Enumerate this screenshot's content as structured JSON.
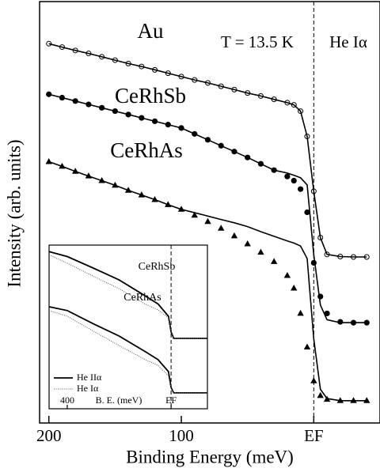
{
  "chart_data": [
    {
      "type": "line",
      "x_label": "Binding Energy (meV)",
      "y_label": "Intensity (arb. units)",
      "annotations": [
        "T = 13.5 K",
        "He Iα"
      ],
      "xlim": [
        207,
        -50
      ],
      "ylim": [
        0,
        100
      ],
      "xticks": [
        200,
        100,
        {
          "value": 0,
          "label": "EF"
        }
      ],
      "fermi_level": 0,
      "x": [
        200,
        190,
        180,
        170,
        160,
        150,
        140,
        130,
        120,
        110,
        100,
        90,
        80,
        70,
        60,
        50,
        40,
        30,
        20,
        15,
        10,
        5,
        0,
        -5,
        -10,
        -20,
        -30,
        -40
      ],
      "series": [
        {
          "name": "Au",
          "marker": "open-circle",
          "color": "#000",
          "values": [
            90,
            89.2,
            88.4,
            87.7,
            86.9,
            86.1,
            85.3,
            84.6,
            83.8,
            83.0,
            82.2,
            81.4,
            80.7,
            79.9,
            79.1,
            78.3,
            77.6,
            76.8,
            76.0,
            75.5,
            74.0,
            68,
            55,
            44,
            40,
            39.5,
            39.4,
            39.4
          ],
          "fit": [
            90,
            89.2,
            88.4,
            87.7,
            86.9,
            86.1,
            85.3,
            84.6,
            83.8,
            83.0,
            82.2,
            81.4,
            80.7,
            79.9,
            79.1,
            78.3,
            77.6,
            76.8,
            76.0,
            75.5,
            74.0,
            68,
            55,
            44,
            40,
            39.5,
            39.4,
            39.4
          ]
        },
        {
          "name": "CeRhSb",
          "marker": "circle",
          "color": "#000",
          "values": [
            78,
            77.2,
            76.4,
            75.6,
            74.8,
            74,
            73.2,
            72.4,
            71.6,
            70.8,
            70,
            68.6,
            67.2,
            65.8,
            64.4,
            63,
            61.5,
            60,
            58.5,
            57.5,
            55.5,
            50,
            38,
            30,
            26,
            24,
            23.8,
            23.8
          ],
          "fit": [
            78,
            77.2,
            76.4,
            75.6,
            74.8,
            74,
            73.2,
            72.4,
            71.6,
            70.8,
            70,
            68.6,
            67.2,
            65.8,
            64.4,
            63,
            61.5,
            60,
            59.3,
            58.8,
            58.2,
            56.5,
            40,
            28,
            24.5,
            23.8,
            23.8,
            23.8
          ]
        },
        {
          "name": "CeRhAs",
          "marker": "triangle",
          "color": "#000",
          "values": [
            62,
            60.9,
            59.7,
            58.6,
            57.5,
            56.4,
            55.2,
            54.1,
            53,
            51.8,
            50.7,
            49.3,
            47.8,
            46.2,
            44.4,
            42.5,
            40.5,
            38.3,
            35,
            32,
            26,
            18,
            10,
            6.5,
            5.6,
            5.3,
            5.3,
            5.3
          ],
          "fit": [
            62,
            60.9,
            59.7,
            58.6,
            57.5,
            56.4,
            55.2,
            54.1,
            53,
            51.8,
            50.7,
            49.9,
            49.1,
            48.3,
            47.5,
            46.6,
            45.4,
            44.3,
            43.2,
            42.7,
            42,
            39,
            20,
            8,
            5.8,
            5.3,
            5.3,
            5.3
          ]
        }
      ]
    },
    {
      "type": "line",
      "x_label": "B. E. (meV)",
      "xlim": [
        470,
        -140
      ],
      "ylim": [
        0,
        100
      ],
      "xticks": [
        400,
        {
          "value": 0,
          "label": "EF"
        }
      ],
      "fermi_level": 0,
      "labels": [
        "CeRhSb",
        "CeRhAs"
      ],
      "x": [
        470,
        400,
        300,
        200,
        100,
        50,
        10,
        0,
        -10,
        -140
      ],
      "series": [
        {
          "name": "He IIα",
          "style": "solid",
          "color": "#000",
          "curves": [
            [
              96,
              93,
              86,
              78.7,
              69,
              64,
              56.5,
              47,
              43,
              43
            ],
            [
              62.3,
              60,
              52,
              44.4,
              35,
              30,
              22.7,
              13,
              9.7,
              9.7
            ]
          ]
        },
        {
          "name": "He Iα",
          "style": "dotted",
          "color": "#555",
          "curves": [
            [
              94,
              89,
              81,
              73.4,
              64,
              60.4,
              55.6,
              47,
              43,
              43
            ],
            [
              60,
              56.5,
              47.5,
              38.6,
              30,
              26.5,
              20,
              13,
              9.7,
              9.7
            ]
          ]
        }
      ]
    }
  ]
}
